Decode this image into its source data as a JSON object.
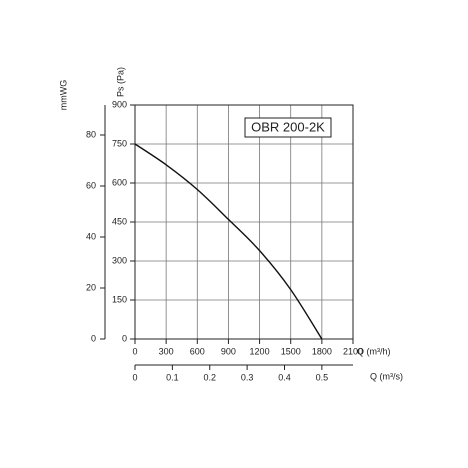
{
  "chart_data": {
    "type": "line",
    "x": [
      0,
      300,
      600,
      900,
      1200,
      1500,
      1800
    ],
    "series": [
      {
        "name": "OBR 200-2K",
        "color": "#111111",
        "values": [
          750,
          670,
          575,
          460,
          340,
          190,
          0
        ]
      }
    ],
    "xlim": [
      0,
      2100
    ],
    "xticks": [
      0,
      300,
      600,
      900,
      1200,
      1500,
      1800,
      2100
    ],
    "xlabel": "Q (m³/h)",
    "ylim": [
      0,
      900
    ],
    "yticks": [
      0,
      150,
      300,
      450,
      600,
      750,
      900
    ],
    "ylabel": "Ps (Pa)",
    "y2lim": [
      0,
      91.77
    ],
    "y2ticks": [
      0,
      20,
      40,
      60,
      80
    ],
    "y2label": "mmWG",
    "x2lim": [
      0,
      0.5833
    ],
    "x2ticks": [
      0,
      0.1,
      0.2,
      0.3,
      0.4,
      0.5
    ],
    "x2label": "Q (m³/s)",
    "grid": true
  }
}
